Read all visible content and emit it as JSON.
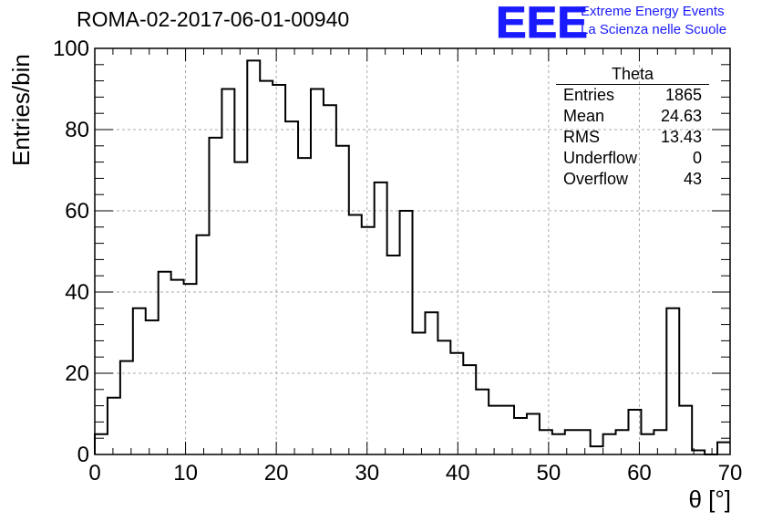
{
  "header": {
    "run_title": "ROMA-02-2017-06-01-00940",
    "logo_text": "EEE",
    "logo_line1": "Extreme Energy Events",
    "logo_line2": "La Scienza nelle Scuole",
    "logo_color": "#1a1aff"
  },
  "stats_box": {
    "title": "Theta",
    "rows": [
      {
        "label": "Entries",
        "value": "1865"
      },
      {
        "label": "Mean",
        "value": "24.63"
      },
      {
        "label": "RMS",
        "value": "13.43"
      },
      {
        "label": "Underflow",
        "value": "0"
      },
      {
        "label": "Overflow",
        "value": "43"
      }
    ]
  },
  "chart_data": {
    "type": "bar",
    "style": "step-histogram",
    "title": "ROMA-02-2017-06-01-00940",
    "xlabel": "θ [°]",
    "ylabel": "Entries/bin",
    "xlim": [
      0,
      70
    ],
    "ylim": [
      0,
      100
    ],
    "bin_width": 1.4,
    "x_ticks": [
      "0",
      "10",
      "20",
      "30",
      "40",
      "50",
      "60",
      "70"
    ],
    "y_ticks": [
      "0",
      "20",
      "40",
      "60",
      "80",
      "100"
    ],
    "grid": true,
    "bin_edges_start": 0,
    "values": [
      5,
      14,
      23,
      36,
      33,
      45,
      43,
      42,
      54,
      78,
      90,
      72,
      97,
      92,
      91,
      82,
      73,
      90,
      86,
      76,
      59,
      56,
      67,
      49,
      60,
      30,
      35,
      28,
      25,
      22,
      16,
      12,
      12,
      9,
      10,
      6,
      5,
      6,
      6,
      2,
      5,
      6,
      11,
      5,
      6,
      36,
      12,
      1,
      0,
      3
    ]
  }
}
